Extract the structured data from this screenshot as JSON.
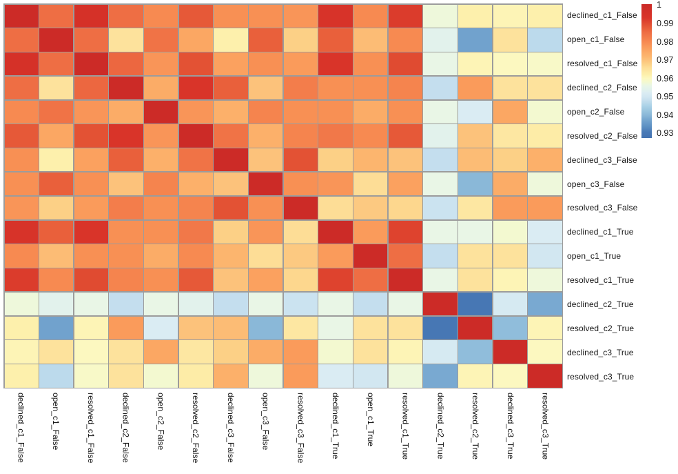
{
  "figure": {
    "kind": "correlation-heatmap",
    "background": "#ffffff",
    "text_color": "#141414",
    "grid_line_color": "#9c9c9c"
  },
  "chart_data": {
    "type": "heatmap",
    "title": "",
    "xlabel": "",
    "ylabel": "",
    "grid": true,
    "legend_position": "right-colorbar",
    "x_categories": [
      "declined_c1_False",
      "open_c1_False",
      "resolved_c1_False",
      "declined_c2_False",
      "open_c2_False",
      "resolved_c2_False",
      "declined_c3_False",
      "open_c3_False",
      "resolved_c3_False",
      "declined_c1_True",
      "open_c1_True",
      "resolved_c1_True",
      "declined_c2_True",
      "resolved_c2_True",
      "declined_c3_True",
      "resolved_c3_True"
    ],
    "y_categories": [
      "declined_c1_False",
      "open_c1_False",
      "resolved_c1_False",
      "declined_c2_False",
      "open_c2_False",
      "resolved_c2_False",
      "declined_c3_False",
      "open_c3_False",
      "resolved_c3_False",
      "declined_c1_True",
      "open_c1_True",
      "resolved_c1_True",
      "declined_c2_True",
      "resolved_c2_True",
      "declined_c3_True",
      "resolved_c3_True"
    ],
    "matrix": [
      [
        1.0,
        0.985,
        0.995,
        0.985,
        0.98,
        0.988,
        0.979,
        0.979,
        0.978,
        0.994,
        0.98,
        0.992,
        0.957,
        0.962,
        0.961,
        0.962
      ],
      [
        0.985,
        1.0,
        0.985,
        0.965,
        0.984,
        0.975,
        0.962,
        0.987,
        0.968,
        0.987,
        0.971,
        0.98,
        0.954,
        0.937,
        0.965,
        0.947
      ],
      [
        0.995,
        0.985,
        1.0,
        0.986,
        0.978,
        0.989,
        0.976,
        0.979,
        0.977,
        0.993,
        0.979,
        0.99,
        0.956,
        0.961,
        0.96,
        0.959
      ],
      [
        0.985,
        0.965,
        0.986,
        1.0,
        0.974,
        0.993,
        0.987,
        0.97,
        0.982,
        0.979,
        0.979,
        0.981,
        0.948,
        0.977,
        0.965,
        0.965
      ],
      [
        0.98,
        0.984,
        0.978,
        0.974,
        1.0,
        0.978,
        0.973,
        0.981,
        0.979,
        0.979,
        0.974,
        0.979,
        0.956,
        0.952,
        0.975,
        0.958
      ],
      [
        0.988,
        0.975,
        0.989,
        0.993,
        0.978,
        1.0,
        0.984,
        0.973,
        0.981,
        0.983,
        0.98,
        0.988,
        0.954,
        0.97,
        0.964,
        0.963
      ],
      [
        0.979,
        0.962,
        0.976,
        0.987,
        0.973,
        0.984,
        1.0,
        0.97,
        0.989,
        0.968,
        0.972,
        0.97,
        0.948,
        0.971,
        0.968,
        0.973
      ],
      [
        0.979,
        0.987,
        0.979,
        0.97,
        0.981,
        0.973,
        0.97,
        1.0,
        0.979,
        0.978,
        0.966,
        0.976,
        0.956,
        0.94,
        0.974,
        0.957
      ],
      [
        0.978,
        0.968,
        0.977,
        0.982,
        0.979,
        0.981,
        0.989,
        0.979,
        1.0,
        0.966,
        0.969,
        0.967,
        0.949,
        0.964,
        0.977,
        0.977
      ],
      [
        0.994,
        0.987,
        0.993,
        0.979,
        0.979,
        0.983,
        0.968,
        0.978,
        0.966,
        1.0,
        0.977,
        0.991,
        0.956,
        0.956,
        0.958,
        0.952
      ],
      [
        0.98,
        0.971,
        0.979,
        0.979,
        0.974,
        0.98,
        0.972,
        0.966,
        0.969,
        0.977,
        1.0,
        0.985,
        0.948,
        0.965,
        0.965,
        0.95
      ],
      [
        0.992,
        0.98,
        0.99,
        0.981,
        0.979,
        0.988,
        0.97,
        0.976,
        0.967,
        0.991,
        0.985,
        1.0,
        0.956,
        0.965,
        0.961,
        0.957
      ],
      [
        0.957,
        0.954,
        0.956,
        0.948,
        0.956,
        0.954,
        0.948,
        0.956,
        0.949,
        0.956,
        0.948,
        0.956,
        1.0,
        0.929,
        0.951,
        0.938
      ],
      [
        0.962,
        0.937,
        0.961,
        0.977,
        0.952,
        0.97,
        0.971,
        0.94,
        0.964,
        0.956,
        0.965,
        0.965,
        0.929,
        1.0,
        0.941,
        0.961
      ],
      [
        0.961,
        0.965,
        0.96,
        0.965,
        0.975,
        0.964,
        0.968,
        0.974,
        0.977,
        0.958,
        0.965,
        0.961,
        0.951,
        0.941,
        1.0,
        0.96
      ],
      [
        0.962,
        0.947,
        0.959,
        0.965,
        0.958,
        0.963,
        0.973,
        0.957,
        0.977,
        0.952,
        0.95,
        0.957,
        0.938,
        0.961,
        0.96,
        1.0
      ]
    ],
    "colorbar": {
      "ticks": [
        {
          "label": "1",
          "value": 1.0
        },
        {
          "label": "0.99",
          "value": 0.99
        },
        {
          "label": "0.98",
          "value": 0.98
        },
        {
          "label": "0.97",
          "value": 0.97
        },
        {
          "label": "0.96",
          "value": 0.96
        },
        {
          "label": "0.95",
          "value": 0.95
        },
        {
          "label": "0.94",
          "value": 0.94
        },
        {
          "label": "0.93",
          "value": 0.93
        }
      ],
      "display_max": 1.0005,
      "display_min": 0.9275
    },
    "colormap": {
      "name": "RdYlBu_r",
      "anchors": [
        [
          0.926,
          "#4272b0"
        ],
        [
          0.931,
          "#4a7bb7"
        ],
        [
          0.934,
          "#5e92c4"
        ],
        [
          0.937,
          "#71a2cd"
        ],
        [
          0.94,
          "#8ab8d8"
        ],
        [
          0.942,
          "#96c2dd"
        ],
        [
          0.945,
          "#abd2e7"
        ],
        [
          0.948,
          "#c4deee"
        ],
        [
          0.95,
          "#d2e7f1"
        ],
        [
          0.952,
          "#daecf3"
        ],
        [
          0.954,
          "#e2f2ec"
        ],
        [
          0.956,
          "#e9f6e6"
        ],
        [
          0.958,
          "#f3f9d0"
        ],
        [
          0.96,
          "#fcf8c0"
        ],
        [
          0.962,
          "#fdf0ac"
        ],
        [
          0.964,
          "#fde7a2"
        ],
        [
          0.966,
          "#fddd96"
        ],
        [
          0.968,
          "#fcd086"
        ],
        [
          0.97,
          "#fcc27b"
        ],
        [
          0.972,
          "#fcb56e"
        ],
        [
          0.975,
          "#fba763"
        ],
        [
          0.977,
          "#fa9b5b"
        ],
        [
          0.98,
          "#f78a51"
        ],
        [
          0.982,
          "#f37d4b"
        ],
        [
          0.985,
          "#ee6e44"
        ],
        [
          0.987,
          "#e9603b"
        ],
        [
          0.99,
          "#e04b31"
        ],
        [
          0.993,
          "#d93429"
        ],
        [
          1.0,
          "#cc2b27"
        ]
      ]
    }
  }
}
